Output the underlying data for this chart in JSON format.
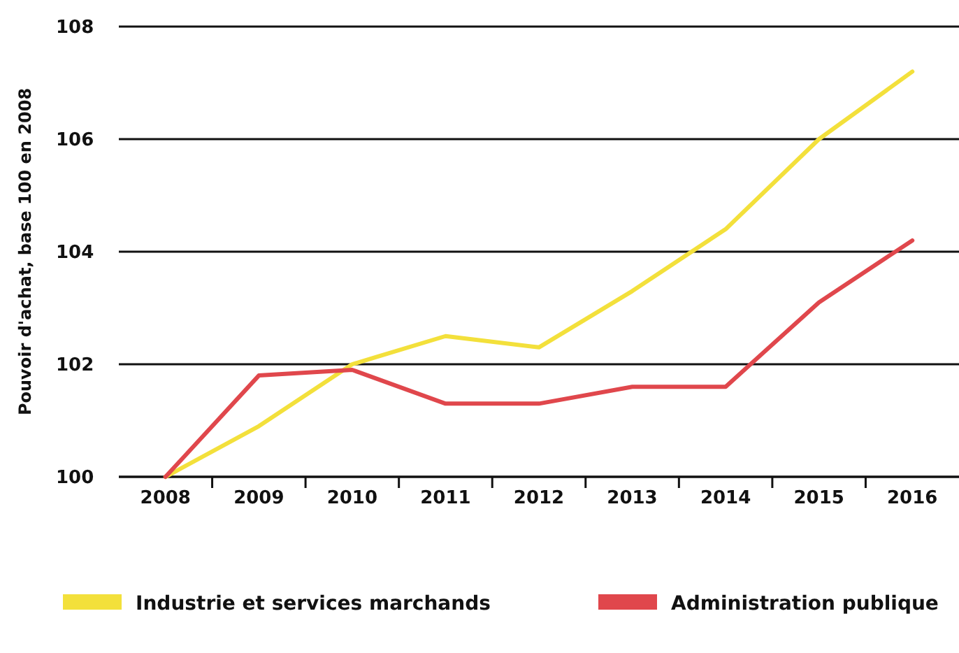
{
  "chart_data": {
    "type": "line",
    "ylabel": "Pouvoir d'achat, base 100 en 2008",
    "x": [
      2008,
      2009,
      2010,
      2011,
      2012,
      2013,
      2014,
      2015,
      2016
    ],
    "series": [
      {
        "name": "Industrie et services marchands",
        "color": "#f3e03b",
        "values": [
          100,
          100.9,
          102.0,
          102.5,
          102.3,
          103.3,
          104.4,
          106.0,
          107.2
        ]
      },
      {
        "name": "Administration publique",
        "color": "#e0474c",
        "values": [
          100,
          101.8,
          101.9,
          101.3,
          101.3,
          101.6,
          101.6,
          103.1,
          104.2
        ]
      }
    ],
    "xlim": [
      2007.5,
      2016.5
    ],
    "xticks": [
      2008,
      2009,
      2010,
      2011,
      2012,
      2013,
      2014,
      2015,
      2016
    ],
    "ylim": [
      100,
      108
    ],
    "yticks": [
      100,
      102,
      104,
      106,
      108
    ],
    "grid": "y",
    "legend": "bottom",
    "line_style": "solid",
    "marker": "none"
  }
}
